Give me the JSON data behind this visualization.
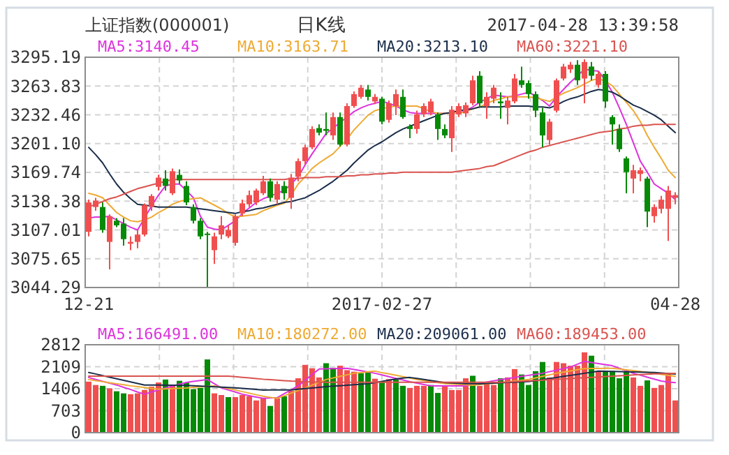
{
  "chart_data": [
    {
      "type": "candlestick",
      "title": "上证指数(000001)",
      "subtitle": "日K线",
      "annotations": [
        "2017-04-28 13:39:58"
      ],
      "categories": [
        "12-21",
        null,
        null,
        null,
        null,
        null,
        null,
        null,
        null,
        null,
        null,
        null,
        null,
        null,
        null,
        null,
        null,
        null,
        null,
        null,
        null,
        null,
        null,
        null,
        null,
        null,
        null,
        null,
        null,
        null,
        null,
        null,
        null,
        null,
        null,
        null,
        null,
        null,
        null,
        null,
        null,
        null,
        "2017-02-27",
        null,
        null,
        null,
        null,
        null,
        null,
        null,
        null,
        null,
        null,
        null,
        null,
        null,
        null,
        null,
        null,
        null,
        null,
        null,
        null,
        null,
        null,
        null,
        null,
        null,
        null,
        null,
        null,
        null,
        null,
        null,
        null,
        null,
        null,
        null,
        null,
        null,
        null,
        null,
        null,
        null,
        "04-28"
      ],
      "ohlc": [
        [
          3105,
          3140,
          3100,
          3137
        ],
        [
          3132,
          3142,
          3128,
          3139
        ],
        [
          3132,
          3137,
          3104,
          3107
        ],
        [
          3094,
          3124,
          3064,
          3122
        ],
        [
          3117,
          3120,
          3110,
          3112
        ],
        [
          3114,
          3120,
          3090,
          3097
        ],
        [
          3092,
          3100,
          3085,
          3094
        ],
        [
          3094,
          3107,
          3087,
          3102
        ],
        [
          3102,
          3136,
          3100,
          3134
        ],
        [
          3132,
          3146,
          3128,
          3144
        ],
        [
          3154,
          3167,
          3150,
          3164
        ],
        [
          3163,
          3172,
          3150,
          3155
        ],
        [
          3147,
          3174,
          3145,
          3171
        ],
        [
          3167,
          3173,
          3157,
          3161
        ],
        [
          3155,
          3160,
          3134,
          3137
        ],
        [
          3132,
          3135,
          3114,
          3117
        ],
        [
          3117,
          3120,
          3097,
          3100
        ],
        [
          3103,
          3105,
          3045,
          3102
        ],
        [
          3085,
          3104,
          3070,
          3100
        ],
        [
          3102,
          3122,
          3097,
          3112
        ],
        [
          3100,
          3112,
          3098,
          3107
        ],
        [
          3093,
          3124,
          3090,
          3122
        ],
        [
          3125,
          3140,
          3122,
          3136
        ],
        [
          3135,
          3150,
          3132,
          3145
        ],
        [
          3137,
          3152,
          3134,
          3150
        ],
        [
          3147,
          3166,
          3145,
          3160
        ],
        [
          3160,
          3163,
          3138,
          3142
        ],
        [
          3140,
          3160,
          3135,
          3157
        ],
        [
          3155,
          3160,
          3140,
          3147
        ],
        [
          3142,
          3168,
          3130,
          3164
        ],
        [
          3165,
          3185,
          3160,
          3182
        ],
        [
          3182,
          3200,
          3178,
          3197
        ],
        [
          3197,
          3220,
          3195,
          3217
        ],
        [
          3218,
          3222,
          3210,
          3213
        ],
        [
          3217,
          3235,
          3210,
          3215
        ],
        [
          3210,
          3235,
          3205,
          3230
        ],
        [
          3230,
          3235,
          3198,
          3200
        ],
        [
          3200,
          3245,
          3198,
          3242
        ],
        [
          3242,
          3258,
          3240,
          3255
        ],
        [
          3252,
          3265,
          3250,
          3262
        ],
        [
          3260,
          3265,
          3248,
          3252
        ],
        [
          3247,
          3255,
          3244,
          3252
        ],
        [
          3250,
          3252,
          3222,
          3225
        ],
        [
          3227,
          3248,
          3224,
          3245
        ],
        [
          3242,
          3260,
          3232,
          3255
        ],
        [
          3252,
          3260,
          3228,
          3230
        ],
        [
          3220,
          3222,
          3207,
          3217
        ],
        [
          3217,
          3237,
          3212,
          3233
        ],
        [
          3233,
          3245,
          3230,
          3242
        ],
        [
          3235,
          3250,
          3232,
          3247
        ],
        [
          3233,
          3235,
          3205,
          3217
        ],
        [
          3217,
          3222,
          3207,
          3210
        ],
        [
          3207,
          3242,
          3192,
          3238
        ],
        [
          3233,
          3245,
          3230,
          3242
        ],
        [
          3234,
          3246,
          3230,
          3243
        ],
        [
          3245,
          3275,
          3243,
          3270
        ],
        [
          3275,
          3280,
          3240,
          3245
        ],
        [
          3242,
          3257,
          3228,
          3252
        ],
        [
          3250,
          3265,
          3245,
          3262
        ],
        [
          3247,
          3257,
          3228,
          3245
        ],
        [
          3240,
          3252,
          3222,
          3248
        ],
        [
          3247,
          3277,
          3245,
          3272
        ],
        [
          3270,
          3285,
          3262,
          3265
        ],
        [
          3267,
          3270,
          3250,
          3255
        ],
        [
          3255,
          3258,
          3230,
          3237
        ],
        [
          3235,
          3240,
          3197,
          3210
        ],
        [
          3205,
          3228,
          3200,
          3225
        ],
        [
          3237,
          3272,
          3235,
          3270
        ],
        [
          3272,
          3288,
          3270,
          3285
        ],
        [
          3282,
          3290,
          3278,
          3287
        ],
        [
          3287,
          3292,
          3265,
          3270
        ],
        [
          3272,
          3293,
          3245,
          3290
        ],
        [
          3285,
          3290,
          3270,
          3275
        ],
        [
          3265,
          3280,
          3262,
          3277
        ],
        [
          3277,
          3280,
          3240,
          3247
        ],
        [
          3230,
          3232,
          3200,
          3222
        ],
        [
          3217,
          3222,
          3192,
          3195
        ],
        [
          3185,
          3187,
          3147,
          3170
        ],
        [
          3163,
          3178,
          3147,
          3172
        ],
        [
          3168,
          3175,
          3160,
          3172
        ],
        [
          3163,
          3165,
          3110,
          3127
        ],
        [
          3122,
          3135,
          3115,
          3132
        ],
        [
          3130,
          3144,
          3125,
          3140
        ],
        [
          3130,
          3155,
          3095,
          3150
        ],
        [
          3142,
          3148,
          3135,
          3145
        ]
      ],
      "colors": [
        "#f04f4f",
        "#f04f4f",
        "#078a07",
        "#f04f4f",
        "#078a07",
        "#078a07",
        "#f04f4f",
        "#f04f4f",
        "#f04f4f",
        "#f04f4f",
        "#f04f4f",
        "#078a07",
        "#f04f4f",
        "#078a07",
        "#078a07",
        "#078a07",
        "#078a07",
        "#078a07",
        "#f04f4f",
        "#f04f4f",
        "#f04f4f",
        "#f04f4f",
        "#f04f4f",
        "#f04f4f",
        "#f04f4f",
        "#f04f4f",
        "#078a07",
        "#f04f4f",
        "#078a07",
        "#f04f4f",
        "#f04f4f",
        "#f04f4f",
        "#f04f4f",
        "#078a07",
        "#078a07",
        "#f04f4f",
        "#078a07",
        "#f04f4f",
        "#f04f4f",
        "#f04f4f",
        "#078a07",
        "#f04f4f",
        "#078a07",
        "#f04f4f",
        "#f04f4f",
        "#078a07",
        "#078a07",
        "#f04f4f",
        "#f04f4f",
        "#f04f4f",
        "#078a07",
        "#078a07",
        "#f04f4f",
        "#f04f4f",
        "#f04f4f",
        "#f04f4f",
        "#078a07",
        "#f04f4f",
        "#f04f4f",
        "#078a07",
        "#f04f4f",
        "#f04f4f",
        "#078a07",
        "#078a07",
        "#078a07",
        "#078a07",
        "#f04f4f",
        "#f04f4f",
        "#f04f4f",
        "#f04f4f",
        "#078a07",
        "#f04f4f",
        "#078a07",
        "#f04f4f",
        "#078a07",
        "#078a07",
        "#078a07",
        "#078a07",
        "#f04f4f",
        "#f04f4f",
        "#078a07",
        "#f04f4f",
        "#f04f4f",
        "#f04f4f",
        "#f04f4f"
      ],
      "series": [
        {
          "type": "line",
          "name": "MA5:3140.45",
          "color": "#dd33dd",
          "values": [
            3120,
            3121,
            3121,
            3122,
            3118,
            3114,
            3110,
            3107,
            3120,
            3133,
            3145,
            3155,
            3157,
            3157,
            3150,
            3142,
            3122,
            3110,
            3108,
            3107,
            3112,
            3117,
            3125,
            3131,
            3137,
            3141,
            3144,
            3147,
            3150,
            3157,
            3165,
            3178,
            3190,
            3201,
            3212,
            3218,
            3224,
            3230,
            3236,
            3240,
            3243,
            3245,
            3247,
            3245,
            3242,
            3238,
            3235,
            3234,
            3234,
            3234,
            3234,
            3234,
            null,
            3234,
            3237,
            3241,
            3246,
            3250,
            3254,
            3253,
            3252,
            3253,
            3255,
            3257,
            3253,
            3248,
            3242,
            3252,
            3260,
            3268,
            3275,
            3282,
            3281,
            3280,
            3270,
            3257,
            3240,
            3222,
            3202,
            3182,
            3170,
            3157,
            3152,
            3147,
            3140
          ]
        },
        {
          "type": "line",
          "name": "MA10:3163.71",
          "color": "#eeaa33",
          "values": [
            3147,
            3145,
            3142,
            3134,
            3126,
            3121,
            3117,
            3116,
            3118,
            3121,
            3126,
            3130,
            3135,
            3138,
            3140,
            3141,
            3142,
            3138,
            3134,
            3130,
            3125,
            3121,
            3122,
            3123,
            3124,
            3128,
            3131,
            3134,
            3136,
            3145,
            3157,
            3165,
            3174,
            3180,
            3185,
            3190,
            3198,
            3206,
            3216,
            3224,
            3232,
            3237,
            3239,
            3241,
            3242,
            3242,
            3242,
            3242,
            3239,
            3236,
            3234,
            3234,
            3234,
            3234,
            3236,
            3239,
            3241,
            3245,
            3248,
            3250,
            3252,
            3252,
            3252,
            3252,
            3251,
            3249,
            3247,
            3252,
            3256,
            3259,
            3262,
            3266,
            3270,
            3272,
            3269,
            3264,
            3255,
            3246,
            3237,
            3225,
            3210,
            3197,
            3185,
            3172,
            3164
          ]
        },
        {
          "type": "line",
          "name": "MA20:3213.10",
          "color": "#1a2d4a",
          "values": [
            3197,
            3189,
            3180,
            3168,
            3157,
            3148,
            3141,
            3135,
            3134,
            3133,
            3132,
            3132,
            3132,
            3132,
            3132,
            3131,
            3130,
            3129,
            3128,
            3127,
            3126,
            3125,
            3127,
            3128,
            3130,
            3131,
            3133,
            3135,
            3137,
            3138,
            3140,
            3142,
            3146,
            3150,
            3155,
            3160,
            3166,
            3172,
            3180,
            3187,
            3194,
            3199,
            3203,
            3208,
            3213,
            3217,
            3220,
            3223,
            3226,
            3229,
            3232,
            3234,
            3235,
            3237,
            3238,
            3239,
            3241,
            3241,
            3241,
            3241,
            3242,
            3242,
            3242,
            3242,
            3241,
            3241,
            3240,
            3243,
            3247,
            3250,
            3252,
            3255,
            3258,
            3260,
            3259,
            3257,
            3253,
            3248,
            3243,
            3240,
            3236,
            3232,
            3227,
            3220,
            3213
          ]
        },
        {
          "type": "line",
          "name": "MA60:3221.10",
          "color": "#d9534f",
          "values": [
            3132,
            3135,
            3138,
            3141,
            3143,
            3146,
            3149,
            3152,
            3154,
            3156,
            3158,
            3160,
            3162,
            3162,
            3162,
            3162,
            3162,
            3162,
            3162,
            3162,
            3162,
            3162,
            3162,
            3162,
            3162,
            3162,
            3162,
            3162,
            3162,
            3163,
            3163,
            3164,
            3164,
            3164,
            3165,
            3165,
            3165,
            3166,
            3166,
            3167,
            3167,
            3168,
            3168,
            3169,
            3169,
            3170,
            3170,
            3170,
            3170,
            3170,
            3170,
            3170,
            3170,
            3171,
            3172,
            3173,
            3174,
            3176,
            3177,
            3180,
            3183,
            3186,
            3189,
            3192,
            3194,
            3197,
            3199,
            3201,
            3203,
            3205,
            3207,
            3209,
            3211,
            3213,
            3214,
            3215,
            3217,
            3218,
            3220,
            3221,
            3221,
            3222,
            3222,
            3222,
            3222
          ]
        }
      ],
      "ylim": [
        3044.29,
        3295.19
      ],
      "yticks": [
        3044.29,
        3075.65,
        3107.01,
        3138.38,
        3169.74,
        {
          "value": 3201.1,
          "label": "3201.10"
        },
        3232.46,
        3263.83,
        3295.19
      ],
      "grid": true,
      "legend": "top"
    },
    {
      "type": "bar",
      "tick_labels": "y",
      "categories": [
        null,
        null,
        null,
        null,
        null,
        null,
        null,
        null,
        null,
        null,
        null,
        null,
        null,
        null,
        null,
        null,
        null,
        null,
        null,
        null,
        null,
        null,
        null,
        null,
        null,
        null,
        null,
        null,
        null,
        null,
        null,
        null,
        null,
        null,
        null,
        null,
        null,
        null,
        null,
        null,
        null,
        null,
        null,
        null,
        null,
        null,
        null,
        null,
        null,
        null,
        null,
        null,
        null,
        null,
        null,
        null,
        null,
        null,
        null,
        null,
        null,
        null,
        null,
        null,
        null,
        null,
        null,
        null,
        null,
        null,
        null,
        null,
        null,
        null,
        null,
        null,
        null,
        null,
        null,
        null,
        null,
        null,
        null,
        null,
        null
      ],
      "values": [
        1632,
        1525,
        1498,
        1418,
        1324,
        1257,
        1230,
        1257,
        1364,
        1471,
        1605,
        1699,
        1525,
        1659,
        1605,
        1391,
        1431,
        2342,
        1257,
        1204,
        1137,
        1137,
        1204,
        1164,
        1030,
        1097,
        855,
        1097,
        1164,
        1338,
        1739,
        2168,
        2061,
        1766,
        2221,
        2074,
        2141,
        2000,
        1950,
        1900,
        1927,
        1726,
        1632,
        1712,
        1699,
        1498,
        1431,
        1498,
        1498,
        1525,
        1271,
        1498,
        1364,
        1364,
        1739,
        1820,
        1498,
        1565,
        1525,
        1739,
        1766,
        2034,
        1860,
        1525,
        1967,
        2261,
        1766,
        2261,
        2221,
        2141,
        2141,
        2569,
        2462,
        1953,
        1967,
        1967,
        1739,
        1967,
        1766,
        1498,
        1672,
        1431,
        1525,
        1900,
        1030
      ],
      "colors": [
        "#f04f4f",
        "#f04f4f",
        "#078a07",
        "#f04f4f",
        "#078a07",
        "#078a07",
        "#f04f4f",
        "#f04f4f",
        "#f04f4f",
        "#f04f4f",
        "#f04f4f",
        "#078a07",
        "#f04f4f",
        "#078a07",
        "#078a07",
        "#078a07",
        "#078a07",
        "#078a07",
        "#f04f4f",
        "#f04f4f",
        "#078a07",
        "#f04f4f",
        "#f04f4f",
        "#f04f4f",
        "#f04f4f",
        "#f04f4f",
        "#078a07",
        "#f04f4f",
        "#078a07",
        "#f04f4f",
        "#f04f4f",
        "#f04f4f",
        "#f04f4f",
        "#f04f4f",
        "#078a07",
        "#078a07",
        "#f04f4f",
        "#f04f4f",
        "#f04f4f",
        "#078a07",
        "#078a07",
        "#f04f4f",
        "#078a07",
        "#f04f4f",
        "#078a07",
        "#078a07",
        "#f04f4f",
        "#f04f4f",
        "#f04f4f",
        "#078a07",
        "#078a07",
        "#f04f4f",
        "#f04f4f",
        "#f04f4f",
        "#f04f4f",
        "#078a07",
        "#f04f4f",
        "#f04f4f",
        "#f04f4f",
        "#078a07",
        "#f04f4f",
        "#f04f4f",
        "#078a07",
        "#078a07",
        "#078a07",
        "#078a07",
        "#f04f4f",
        "#f04f4f",
        "#f04f4f",
        "#f04f4f",
        "#f04f4f",
        "#f04f4f",
        "#078a07",
        "#f04f4f",
        "#078a07",
        "#078a07",
        "#078a07",
        "#078a07",
        "#f04f4f",
        "#f04f4f",
        "#078a07",
        "#f04f4f",
        "#f04f4f",
        "#f04f4f",
        "#f04f4f"
      ],
      "series": [
        {
          "type": "line",
          "name": "MA5:166491.00",
          "color": "#dd33dd",
          "values": [
            1766,
            1700,
            1640,
            1585,
            1525,
            1450,
            1380,
            1300,
            1230,
            1300,
            1365,
            1431,
            1490,
            1550,
            1605,
            1640,
            1670,
            1699,
            1565,
            1431,
            1365,
            1300,
            1230,
            1185,
            1140,
            1097,
            1108,
            1120,
            1246,
            1372,
            1498,
            1677,
            1856,
            2034,
            2041,
            2048,
            2054,
            2061,
            2021,
            1980,
            1940,
            1900,
            1845,
            1790,
            1737,
            1683,
            1630,
            1586,
            1542,
            1498,
            1498,
            1498,
            1498,
            1498,
            1498,
            1540,
            1580,
            1620,
            1660,
            1695,
            1730,
            1766,
            1800,
            1833,
            1866,
            1900,
            1950,
            2000,
            2050,
            2100,
            2190,
            2280,
            2245,
            2210,
            2175,
            2140,
            2060,
            1980,
            1900,
            1838,
            1775,
            1713,
            1650,
            1620,
            1600
          ]
        },
        {
          "type": "line",
          "name": "MA10:180272.00",
          "color": "#eeaa33",
          "values": [
            1699,
            1665,
            1632,
            1598,
            1565,
            1532,
            1498,
            1471,
            1444,
            1418,
            1391,
            1401,
            1411,
            1421,
            1431,
            1448,
            1465,
            1481,
            1498,
            1453,
            1409,
            1364,
            1314,
            1264,
            1214,
            1164,
            1130,
            1097,
            1180,
            1264,
            1348,
            1431,
            1520,
            1610,
            1699,
            1749,
            1800,
            1850,
            1900,
            1922,
            1945,
            1967,
            1920,
            1880,
            1835,
            1790,
            1745,
            1700,
            1668,
            1635,
            1602,
            1570,
            1557,
            1545,
            1532,
            1520,
            1540,
            1560,
            1580,
            1600,
            1625,
            1650,
            1675,
            1700,
            1750,
            1800,
            1850,
            1900,
            1937,
            1975,
            2012,
            2050,
            2052,
            2055,
            2058,
            2060,
            2035,
            2010,
            1985,
            1960,
            1929,
            1897,
            1866,
            1834,
            1803
          ]
        },
        {
          "type": "line",
          "name": "MA20:209061.00",
          "color": "#1a2d4a",
          "values": [
            1927,
            1877,
            1826,
            1776,
            1726,
            1676,
            1625,
            1575,
            1525,
            1523,
            1521,
            1519,
            1517,
            1515,
            1513,
            1502,
            1490,
            1479,
            1467,
            1456,
            1445,
            1434,
            1417,
            1399,
            1382,
            1364,
            1365,
            1366,
            1367,
            1368,
            1389,
            1409,
            1430,
            1450,
            1471,
            1487,
            1503,
            1518,
            1534,
            1550,
            1565,
            1600,
            1640,
            1680,
            1720,
            1745,
            1766,
            1733,
            1700,
            1666,
            1633,
            1600,
            1590,
            1580,
            1570,
            1567,
            1565,
            1575,
            1585,
            1595,
            1605,
            1615,
            1623,
            1632,
            1665,
            1699,
            1732,
            1766,
            1800,
            1833,
            1866,
            1900,
            1933,
            1967,
            1962,
            1957,
            1952,
            1947,
            1942,
            1937,
            1932,
            1927,
            1910,
            1890,
            1873
          ]
        },
        {
          "type": "line",
          "name": "MA60:189453.00",
          "color": "#d9534f",
          "values": [
            1806,
            1806,
            1806,
            1806,
            1806,
            1806,
            1806,
            1806,
            1806,
            1806,
            1806,
            1806,
            1806,
            1806,
            1806,
            1806,
            1806,
            1806,
            1806,
            1806,
            1806,
            1790,
            1770,
            1750,
            1730,
            1710,
            1695,
            1680,
            1665,
            1650,
            1640,
            1630,
            1625,
            1620,
            1610,
            1610,
            1610,
            1610,
            1610,
            1610,
            1610,
            1610,
            1610,
            1610,
            1610,
            1610,
            1610,
            1610,
            1610,
            1610,
            1610,
            1610,
            1610,
            1610,
            1610,
            1610,
            1610,
            1610,
            1610,
            1610,
            1620,
            1632,
            1645,
            1657,
            1670,
            1682,
            1695,
            1707,
            1720,
            1732,
            1745,
            1757,
            1770,
            1782,
            1795,
            1807,
            1820,
            1832,
            1845,
            1857,
            1870,
            1880,
            1887,
            1892,
            1895
          ]
        }
      ],
      "ylim": [
        0,
        2812
      ],
      "yticks": [
        0,
        703,
        1406,
        2109,
        2812
      ],
      "grid": true,
      "legend": "top"
    }
  ]
}
